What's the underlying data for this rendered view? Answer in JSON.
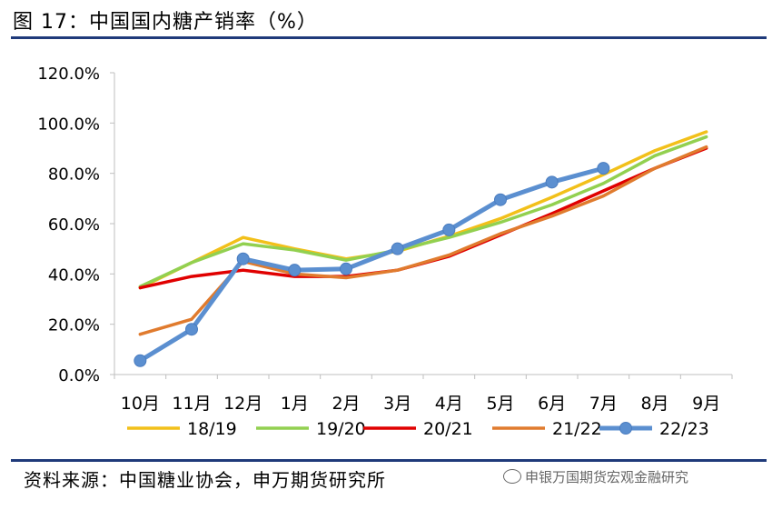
{
  "figure": {
    "title": "图 17：中国国内糖产销率（%）",
    "source": "资料来源：中国糖业协会，申万期货研究所",
    "watermark": "申银万国期货宏观金融研究"
  },
  "chart_data": {
    "type": "line",
    "title": "",
    "xlabel": "",
    "ylabel": "",
    "categories": [
      "10月",
      "11月",
      "12月",
      "1月",
      "2月",
      "3月",
      "4月",
      "5月",
      "6月",
      "7月",
      "8月",
      "9月"
    ],
    "ylim": [
      0,
      120
    ],
    "yticks": [
      "0.0%",
      "20.0%",
      "40.0%",
      "60.0%",
      "80.0%",
      "100.0%",
      "120.0%"
    ],
    "grid": false,
    "legend_position": "bottom",
    "series": [
      {
        "name": "18/19",
        "color": "#f2c01a",
        "markers": false,
        "values": [
          34.5,
          44.5,
          54.5,
          50,
          46,
          49,
          55,
          62,
          70.5,
          79.5,
          89,
          96.5
        ]
      },
      {
        "name": "19/20",
        "color": "#92d050",
        "markers": false,
        "values": [
          35,
          44.5,
          52,
          49.5,
          45.5,
          49.5,
          54.5,
          60.5,
          67.5,
          76,
          87,
          94.5
        ]
      },
      {
        "name": "20/21",
        "color": "#e00000",
        "markers": false,
        "values": [
          34.5,
          39,
          41.5,
          39,
          39,
          41.5,
          47,
          55.5,
          64,
          73,
          82,
          90
        ]
      },
      {
        "name": "21/22",
        "color": "#e07b2e",
        "markers": false,
        "values": [
          16,
          22,
          45,
          40,
          38.5,
          41.5,
          47.5,
          56,
          63,
          71,
          82,
          90.5
        ]
      },
      {
        "name": "22/23",
        "color": "#5b8fd0",
        "markers": true,
        "values": [
          5.5,
          18,
          46,
          41.5,
          42,
          50,
          57.5,
          69.5,
          76.5,
          82,
          null,
          null
        ]
      }
    ]
  }
}
